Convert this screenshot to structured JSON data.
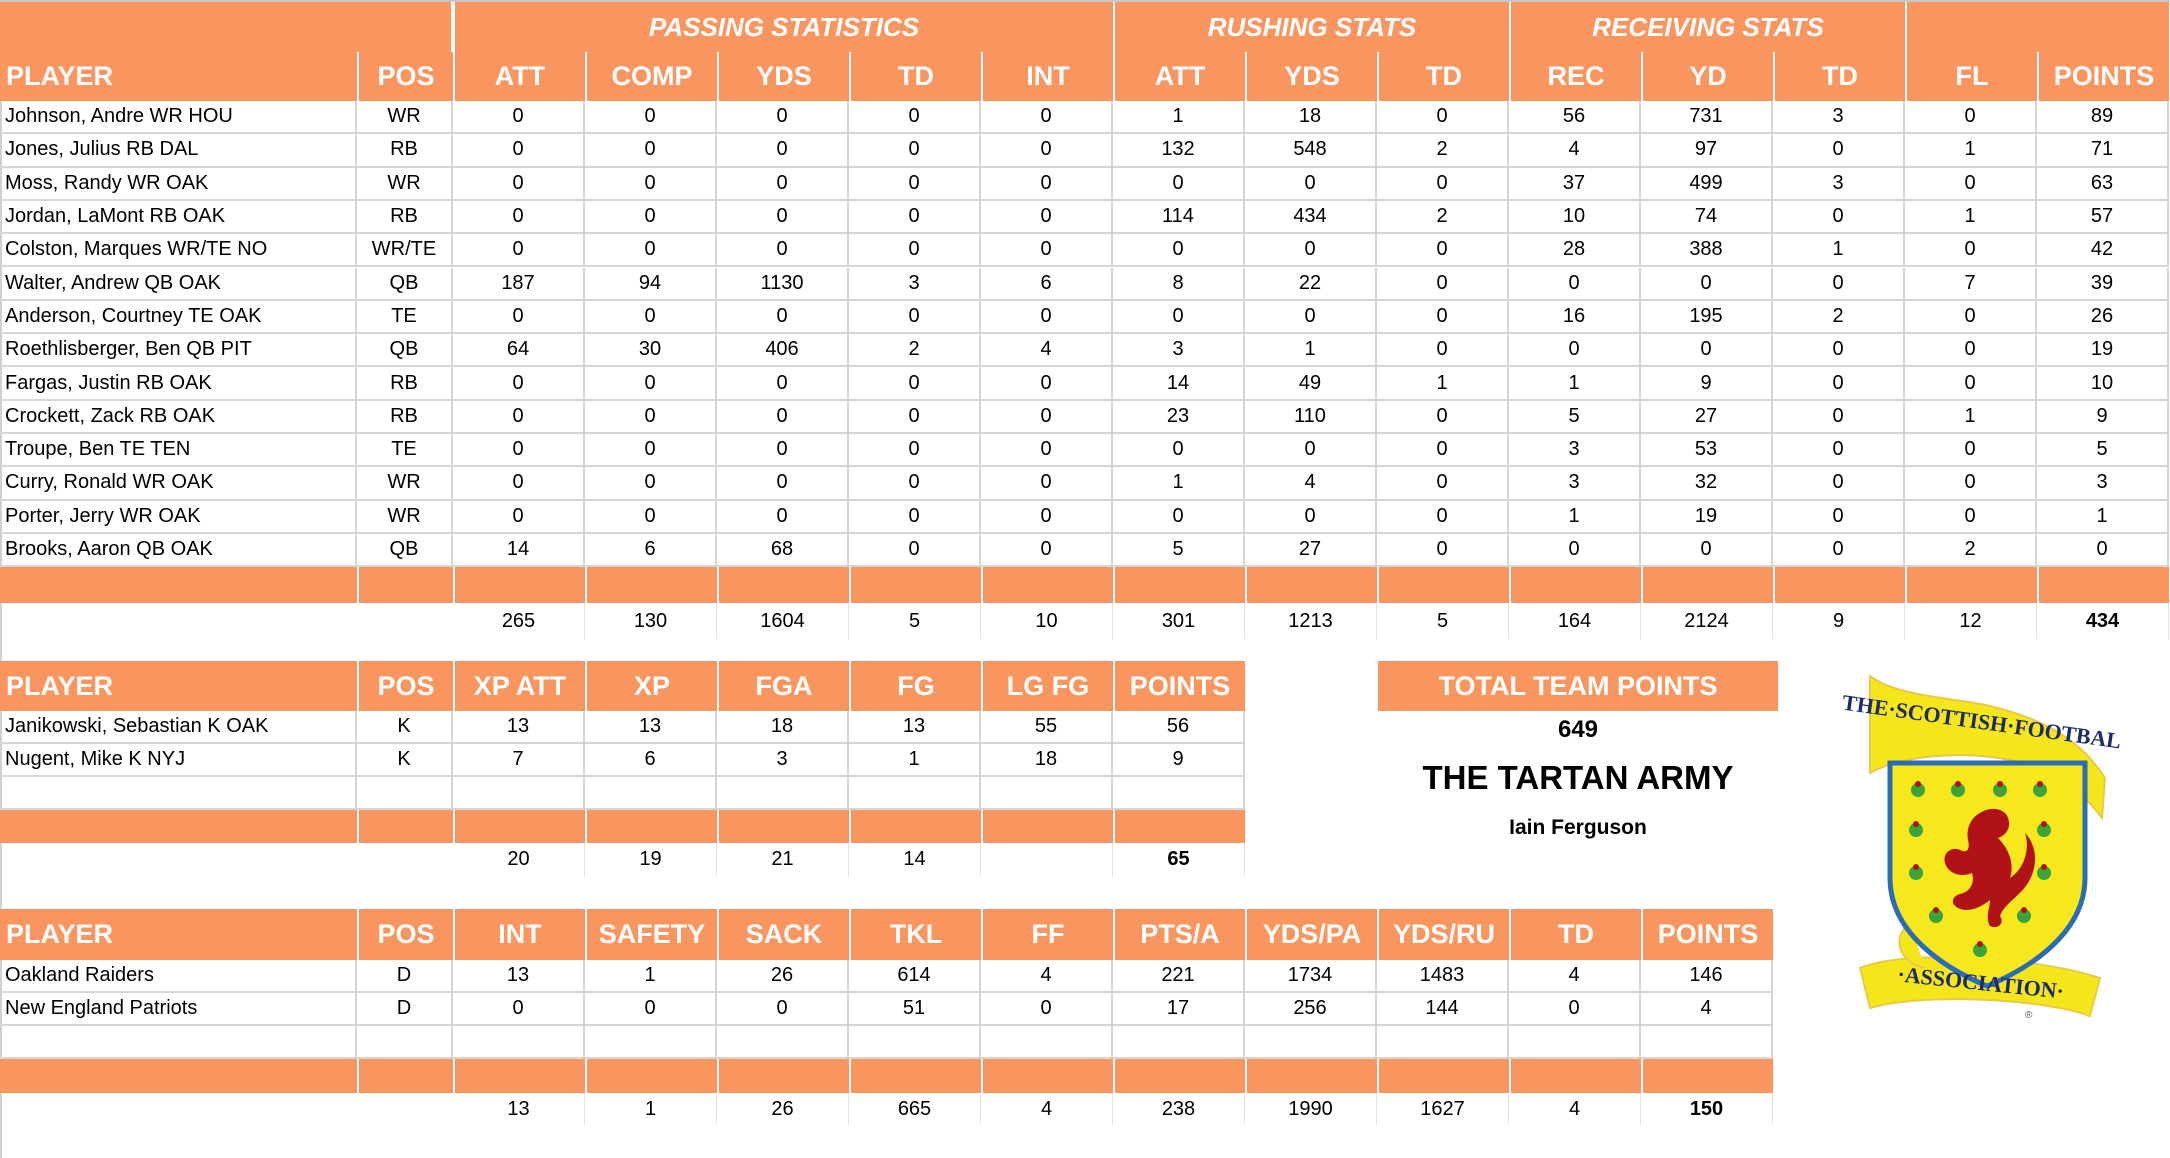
{
  "offense": {
    "groups": [
      {
        "label": "",
        "key": "player_group"
      },
      {
        "label": "PASSING STATISTICS",
        "key": "passing"
      },
      {
        "label": "RUSHING STATS",
        "key": "rushing"
      },
      {
        "label": "RECEIVING STATS",
        "key": "receiving"
      },
      {
        "label": "",
        "key": "misc"
      }
    ],
    "columns": [
      "PLAYER",
      "POS",
      "ATT",
      "COMP",
      "YDS",
      "TD",
      "INT",
      "ATT",
      "YDS",
      "TD",
      "REC",
      "YD",
      "TD",
      "FL",
      "POINTS"
    ],
    "rows": [
      [
        "Johnson, Andre WR HOU",
        "WR",
        "0",
        "0",
        "0",
        "0",
        "0",
        "1",
        "18",
        "0",
        "56",
        "731",
        "3",
        "0",
        "89"
      ],
      [
        "Jones, Julius RB DAL",
        "RB",
        "0",
        "0",
        "0",
        "0",
        "0",
        "132",
        "548",
        "2",
        "4",
        "97",
        "0",
        "1",
        "71"
      ],
      [
        "Moss, Randy WR OAK",
        "WR",
        "0",
        "0",
        "0",
        "0",
        "0",
        "0",
        "0",
        "0",
        "37",
        "499",
        "3",
        "0",
        "63"
      ],
      [
        "Jordan, LaMont RB OAK",
        "RB",
        "0",
        "0",
        "0",
        "0",
        "0",
        "114",
        "434",
        "2",
        "10",
        "74",
        "0",
        "1",
        "57"
      ],
      [
        "Colston, Marques WR/TE NO",
        "WR/TE",
        "0",
        "0",
        "0",
        "0",
        "0",
        "0",
        "0",
        "0",
        "28",
        "388",
        "1",
        "0",
        "42"
      ],
      [
        "Walter, Andrew QB OAK",
        "QB",
        "187",
        "94",
        "1130",
        "3",
        "6",
        "8",
        "22",
        "0",
        "0",
        "0",
        "0",
        "7",
        "39"
      ],
      [
        "Anderson, Courtney TE OAK",
        "TE",
        "0",
        "0",
        "0",
        "0",
        "0",
        "0",
        "0",
        "0",
        "16",
        "195",
        "2",
        "0",
        "26"
      ],
      [
        "Roethlisberger, Ben QB PIT",
        "QB",
        "64",
        "30",
        "406",
        "2",
        "4",
        "3",
        "1",
        "0",
        "0",
        "0",
        "0",
        "0",
        "19"
      ],
      [
        "Fargas, Justin RB OAK",
        "RB",
        "0",
        "0",
        "0",
        "0",
        "0",
        "14",
        "49",
        "1",
        "1",
        "9",
        "0",
        "0",
        "10"
      ],
      [
        "Crockett, Zack RB OAK",
        "RB",
        "0",
        "0",
        "0",
        "0",
        "0",
        "23",
        "110",
        "0",
        "5",
        "27",
        "0",
        "1",
        "9"
      ],
      [
        "Troupe, Ben TE TEN",
        "TE",
        "0",
        "0",
        "0",
        "0",
        "0",
        "0",
        "0",
        "0",
        "3",
        "53",
        "0",
        "0",
        "5"
      ],
      [
        "Curry, Ronald WR OAK",
        "WR",
        "0",
        "0",
        "0",
        "0",
        "0",
        "1",
        "4",
        "0",
        "3",
        "32",
        "0",
        "0",
        "3"
      ],
      [
        "Porter, Jerry WR OAK",
        "WR",
        "0",
        "0",
        "0",
        "0",
        "0",
        "0",
        "0",
        "0",
        "1",
        "19",
        "0",
        "0",
        "1"
      ],
      [
        "Brooks, Aaron QB OAK",
        "QB",
        "14",
        "6",
        "68",
        "0",
        "0",
        "5",
        "27",
        "0",
        "0",
        "0",
        "0",
        "2",
        "0"
      ]
    ],
    "totals": [
      "",
      "",
      "265",
      "130",
      "1604",
      "5",
      "10",
      "301",
      "1213",
      "5",
      "164",
      "2124",
      "9",
      "12",
      "434"
    ]
  },
  "kickers": {
    "columns": [
      "PLAYER",
      "POS",
      "XP ATT",
      "XP",
      "FGA",
      "FG",
      "LG FG",
      "POINTS"
    ],
    "rows": [
      [
        "Janikowski, Sebastian K OAK",
        "K",
        "13",
        "13",
        "18",
        "13",
        "55",
        "56"
      ],
      [
        "Nugent, Mike K NYJ",
        "K",
        "7",
        "6",
        "3",
        "1",
        "18",
        "9"
      ]
    ],
    "totals": [
      "",
      "",
      "20",
      "19",
      "21",
      "14",
      "",
      "65"
    ]
  },
  "defense": {
    "columns": [
      "PLAYER",
      "POS",
      "INT",
      "SAFETY",
      "SACK",
      "TKL",
      "FF",
      "PTS/A",
      "YDS/PA",
      "YDS/RU",
      "TD",
      "POINTS"
    ],
    "rows": [
      [
        "Oakland Raiders",
        "D",
        "13",
        "1",
        "26",
        "614",
        "4",
        "221",
        "1734",
        "1483",
        "4",
        "146"
      ],
      [
        "New England Patriots",
        "D",
        "0",
        "0",
        "0",
        "51",
        "0",
        "17",
        "256",
        "144",
        "0",
        "4"
      ]
    ],
    "totals": [
      "",
      "",
      "13",
      "1",
      "26",
      "665",
      "4",
      "238",
      "1990",
      "1627",
      "4",
      "150"
    ]
  },
  "team": {
    "total_points_label": "TOTAL TEAM POINTS",
    "total_points": "649",
    "name": "THE TARTAN ARMY",
    "owner": "Iain Ferguson"
  },
  "logo": {
    "top_text": "THE·SCOTTISH·FOOTBALL",
    "bottom_text": "·ASSOCIATION·",
    "registered": "®",
    "colors": {
      "ribbon": "#F5E61A",
      "shield": "#F7E81E",
      "border": "#2A6CB5",
      "lion": "#B01217",
      "text": "#1D2A6B",
      "thistle": "#3BA33B"
    }
  },
  "colors": {
    "accent": "#F9955F",
    "grid": "#D6D6D6",
    "header_text": "#FFFFFF"
  }
}
